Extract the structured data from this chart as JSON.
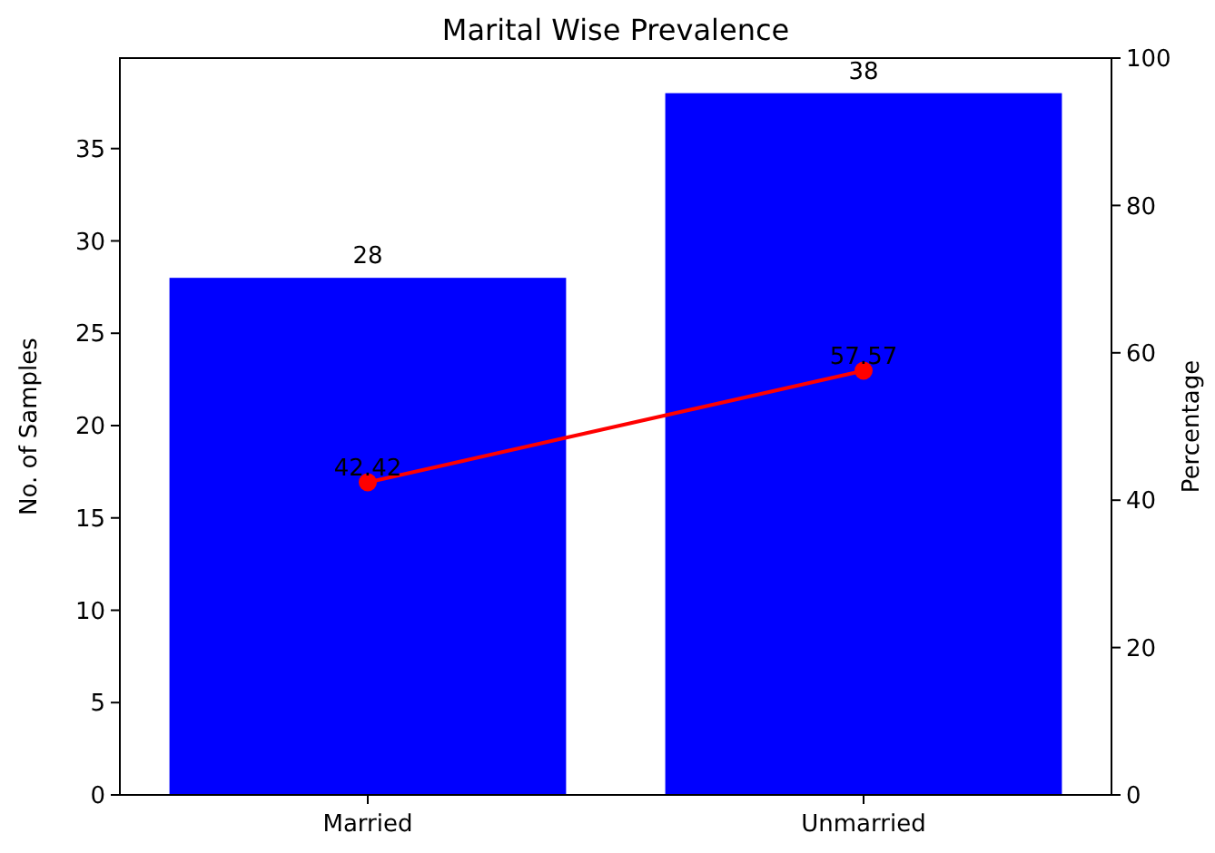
{
  "chart_data": {
    "type": "bar",
    "title": "Marital Wise Prevalence",
    "ylabel": "No. of Samples",
    "y2label": "Percentage",
    "categories": [
      "Married",
      "Unmarried"
    ],
    "series": [
      {
        "color": "#0000ff",
        "values": [
          28,
          38
        ]
      },
      {
        "type": "line",
        "axis": "y2",
        "color": "#ff0000",
        "values": [
          42.42,
          57.57
        ],
        "marker": "circle"
      }
    ],
    "ylim": [
      0,
      39.9
    ],
    "yticks": [
      0,
      5,
      10,
      15,
      20,
      25,
      30,
      35
    ],
    "y2lim": [
      0,
      100
    ],
    "y2ticks": [
      0,
      20,
      40,
      60,
      80,
      100
    ],
    "data_labels": true,
    "grid": false
  }
}
